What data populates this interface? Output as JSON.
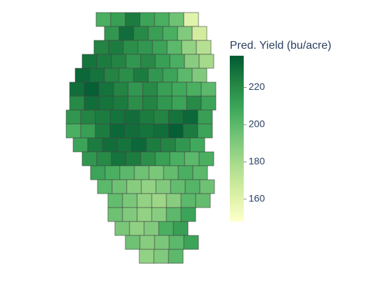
{
  "chart_data": {
    "type": "choropleth",
    "colorbar_title": "Pred. Yield (bu/acre)",
    "zlim": [
      148,
      237
    ],
    "zticks": [
      160,
      180,
      200,
      220
    ],
    "colorscale": [
      "#ffffcc",
      "#d9f0a3",
      "#addd8e",
      "#78c679",
      "#41ab5d",
      "#238443",
      "#005a32"
    ],
    "values": [
      205,
      212,
      225,
      210,
      205,
      195,
      160,
      215,
      230,
      220,
      212,
      205,
      190,
      165,
      222,
      225,
      218,
      215,
      210,
      200,
      185,
      175,
      228,
      225,
      222,
      215,
      220,
      212,
      205,
      188,
      180,
      232,
      228,
      222,
      218,
      225,
      215,
      210,
      200,
      190,
      230,
      235,
      228,
      222,
      215,
      220,
      212,
      208,
      205,
      200,
      220,
      230,
      228,
      225,
      218,
      222,
      215,
      210,
      220,
      210,
      215,
      222,
      225,
      228,
      230,
      225,
      222,
      228,
      232,
      212,
      205,
      212,
      225,
      232,
      230,
      228,
      230,
      235,
      225,
      210,
      210,
      225,
      230,
      228,
      232,
      225,
      222,
      215,
      208,
      215,
      220,
      228,
      225,
      218,
      212,
      205,
      200,
      205,
      210,
      205,
      200,
      195,
      192,
      198,
      205,
      200,
      200,
      195,
      188,
      185,
      190,
      198,
      202,
      195,
      198,
      192,
      185,
      182,
      188,
      200,
      198,
      195,
      190,
      185,
      188,
      200,
      210,
      192,
      186,
      190,
      205,
      212,
      195,
      188,
      192,
      200,
      210,
      185,
      190,
      200
    ]
  }
}
